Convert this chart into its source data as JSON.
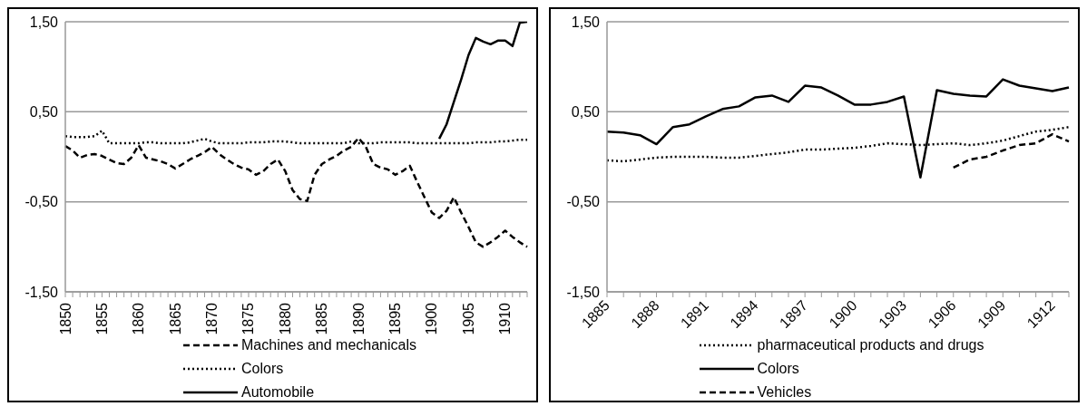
{
  "chart_data": [
    {
      "type": "line",
      "categories": [
        "1850",
        null,
        null,
        null,
        null,
        "1855",
        null,
        null,
        null,
        null,
        "1860",
        null,
        null,
        null,
        null,
        "1865",
        null,
        null,
        null,
        null,
        "1870",
        null,
        null,
        null,
        null,
        "1875",
        null,
        null,
        null,
        null,
        "1880",
        null,
        null,
        null,
        null,
        "1885",
        null,
        null,
        null,
        null,
        "1890",
        null,
        null,
        null,
        null,
        "1895",
        null,
        null,
        null,
        null,
        "1900",
        null,
        null,
        null,
        null,
        "1905",
        null,
        null,
        null,
        null,
        "1910",
        null,
        null,
        null
      ],
      "ylim": [
        -1.5,
        1.5
      ],
      "yticks": [
        {
          "value": -1.5,
          "label": "-1,50"
        },
        {
          "value": -0.5,
          "label": "-0,50"
        },
        {
          "value": 0.5,
          "label": "0,50"
        },
        {
          "value": 1.5,
          "label": "1,50"
        }
      ],
      "grid": "y",
      "legend": "bottom",
      "series": [
        {
          "name": "Machines and mechanicals",
          "color": "#000000",
          "line_style": "dashed",
          "values": [
            0.12,
            0.07,
            -0.01,
            0.02,
            0.03,
            0.01,
            -0.03,
            -0.07,
            -0.08,
            -0.01,
            0.13,
            -0.01,
            -0.03,
            -0.05,
            -0.08,
            -0.13,
            -0.08,
            -0.03,
            0.01,
            0.05,
            0.11,
            0.03,
            -0.03,
            -0.08,
            -0.12,
            -0.14,
            -0.2,
            -0.16,
            -0.08,
            -0.03,
            -0.16,
            -0.37,
            -0.47,
            -0.49,
            -0.2,
            -0.08,
            -0.03,
            0.01,
            0.07,
            0.11,
            0.21,
            0.11,
            -0.08,
            -0.12,
            -0.14,
            -0.2,
            -0.16,
            -0.1,
            -0.28,
            -0.45,
            -0.62,
            -0.68,
            -0.6,
            -0.45,
            -0.62,
            -0.78,
            -0.95,
            -1.0,
            -0.95,
            -0.89,
            -0.82,
            -0.89,
            -0.95,
            -1.0
          ]
        },
        {
          "name": "Colors",
          "color": "#000000",
          "line_style": "dotted",
          "values": [
            0.23,
            0.22,
            0.22,
            0.22,
            0.23,
            0.29,
            0.15,
            0.15,
            0.15,
            0.15,
            0.15,
            0.16,
            0.16,
            0.15,
            0.15,
            0.15,
            0.15,
            0.16,
            0.18,
            0.2,
            0.17,
            0.15,
            0.15,
            0.15,
            0.15,
            0.16,
            0.16,
            0.16,
            0.17,
            0.17,
            0.17,
            0.16,
            0.15,
            0.15,
            0.15,
            0.15,
            0.15,
            0.15,
            0.15,
            0.17,
            0.15,
            0.15,
            0.15,
            0.16,
            0.16,
            0.16,
            0.16,
            0.16,
            0.15,
            0.15,
            0.15,
            0.15,
            0.15,
            0.15,
            0.15,
            0.15,
            0.16,
            0.16,
            0.16,
            0.17,
            0.17,
            0.18,
            0.19,
            0.19
          ]
        },
        {
          "name": "Automobile",
          "color": "#000000",
          "line_style": "solid",
          "values": [
            null,
            null,
            null,
            null,
            null,
            null,
            null,
            null,
            null,
            null,
            null,
            null,
            null,
            null,
            null,
            null,
            null,
            null,
            null,
            null,
            null,
            null,
            null,
            null,
            null,
            null,
            null,
            null,
            null,
            null,
            null,
            null,
            null,
            null,
            null,
            null,
            null,
            null,
            null,
            null,
            null,
            null,
            null,
            null,
            null,
            null,
            null,
            null,
            null,
            null,
            null,
            0.2,
            0.36,
            0.61,
            0.86,
            1.13,
            1.32,
            1.28,
            1.25,
            1.29,
            1.29,
            1.23,
            1.49,
            1.5
          ]
        }
      ]
    },
    {
      "type": "line",
      "categories": [
        "1885",
        null,
        null,
        "1888",
        null,
        null,
        "1891",
        null,
        null,
        "1894",
        null,
        null,
        "1897",
        null,
        null,
        "1900",
        null,
        null,
        "1903",
        null,
        null,
        "1906",
        null,
        null,
        "1909",
        null,
        null,
        "1912",
        null
      ],
      "ylim": [
        -1.5,
        1.5
      ],
      "yticks": [
        {
          "value": -1.5,
          "label": "-1,50"
        },
        {
          "value": -0.5,
          "label": "-0,50"
        },
        {
          "value": 0.5,
          "label": "0,50"
        },
        {
          "value": 1.5,
          "label": "1,50"
        }
      ],
      "grid": "y",
      "legend": "bottom",
      "series": [
        {
          "name": "pharmaceutical products and drugs",
          "color": "#000000",
          "line_style": "dotted",
          "values": [
            -0.04,
            -0.05,
            -0.03,
            -0.01,
            0,
            0,
            0,
            -0.01,
            -0.01,
            0.01,
            0.03,
            0.05,
            0.08,
            0.08,
            0.09,
            0.1,
            0.12,
            0.15,
            0.14,
            0.13,
            0.14,
            0.15,
            0.13,
            0.15,
            0.18,
            0.23,
            0.28,
            0.3,
            0.33
          ]
        },
        {
          "name": "Colors",
          "color": "#000000",
          "line_style": "solid",
          "values": [
            0.28,
            0.27,
            0.24,
            0.14,
            0.33,
            0.36,
            0.45,
            0.53,
            0.56,
            0.66,
            0.68,
            0.61,
            0.79,
            0.77,
            0.68,
            0.58,
            0.58,
            0.61,
            0.67,
            -0.23,
            0.74,
            0.7,
            0.68,
            0.67,
            0.86,
            0.79,
            0.76,
            0.73,
            0.77
          ]
        },
        {
          "name": "Vehicles",
          "color": "#000000",
          "line_style": "dashed",
          "values": [
            null,
            null,
            null,
            null,
            null,
            null,
            null,
            null,
            null,
            null,
            null,
            null,
            null,
            null,
            null,
            null,
            null,
            null,
            null,
            null,
            null,
            -0.12,
            -0.03,
            0,
            0.07,
            0.13,
            0.15,
            0.25,
            0.17
          ]
        }
      ]
    }
  ]
}
